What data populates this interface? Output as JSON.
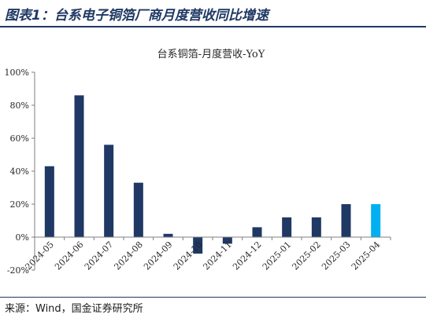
{
  "header": {
    "title": "图表1：台系电子铜箔厂商月度营收同比增速"
  },
  "footer": {
    "source": "来源：Wind，国金证券研究所"
  },
  "colors": {
    "bar": "#1f3864",
    "highlight": "#00b0f0",
    "header": "#1f3864"
  },
  "chart_data": {
    "type": "bar",
    "title": "台系铜箔-月度营收-YoY",
    "categories": [
      "2024-05",
      "2024-06",
      "2024-07",
      "2024-08",
      "2024-09",
      "2024-10",
      "2024-11",
      "2024-12",
      "2025-01",
      "2025-02",
      "2025-03",
      "2025-04"
    ],
    "values": [
      43,
      86,
      56,
      33,
      2,
      -10,
      -4,
      6,
      12,
      12,
      20,
      20
    ],
    "highlight_index": 11,
    "ylim": [
      -20,
      100
    ],
    "yticks": [
      -20,
      0,
      20,
      40,
      60,
      80,
      100
    ],
    "ytick_labels": [
      "-20%",
      "0%",
      "20%",
      "40%",
      "60%",
      "80%",
      "100%"
    ],
    "grid": false,
    "legend": "none"
  }
}
